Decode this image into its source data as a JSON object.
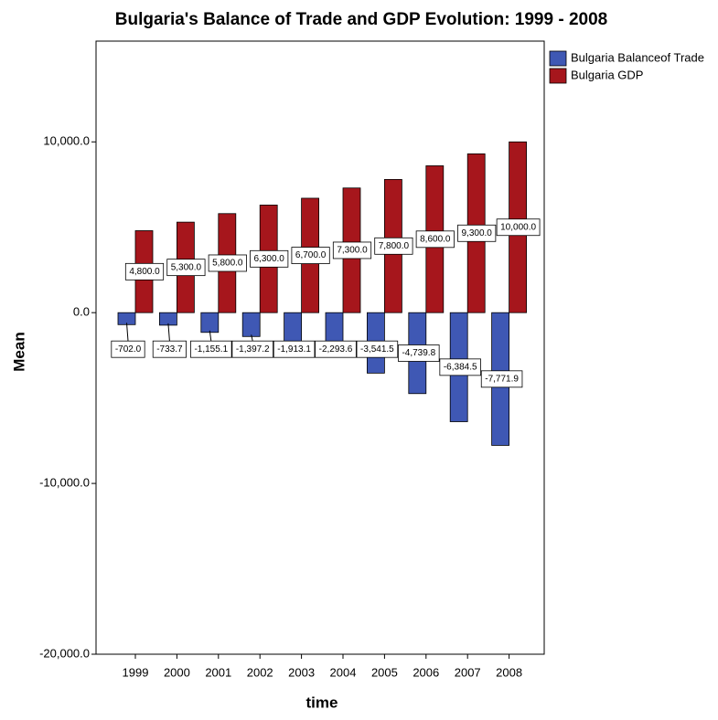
{
  "chart_data": {
    "type": "bar",
    "title": "Bulgaria's Balance of Trade and GDP Evolution: 1999 - 2008",
    "x_label": "time",
    "y_label": "Mean",
    "categories": [
      "1999",
      "2000",
      "2001",
      "2002",
      "2003",
      "2004",
      "2005",
      "2006",
      "2007",
      "2008"
    ],
    "series": [
      {
        "name": "Bulgaria Balanceof Trade",
        "color": "#3f58b4",
        "values": [
          -702.0,
          -733.7,
          -1155.1,
          -1397.2,
          -1913.1,
          -2293.6,
          -3541.5,
          -4739.8,
          -6384.5,
          -7771.9
        ],
        "value_labels": [
          "-702.0",
          "-733.7",
          "-1,155.1",
          "-1,397.2",
          "-1,913.1",
          "-2,293.6",
          "-3,541.5",
          "-4,739.8",
          "-6,384.5",
          "-7,771.9"
        ]
      },
      {
        "name": "Bulgaria GDP",
        "color": "#a6161c",
        "values": [
          4800,
          5300,
          5800,
          6300,
          6700,
          7300,
          7800,
          8600,
          9300,
          10000
        ],
        "value_labels": [
          "4,800.0",
          "5,300.0",
          "5,800.0",
          "6,300.0",
          "6,700.0",
          "7,300.0",
          "7,800.0",
          "8,600.0",
          "9,300.0",
          "10,000.0"
        ]
      }
    ],
    "ylim": [
      -20000,
      15900
    ],
    "yticks": [
      {
        "value": -20000,
        "label": "-20,000.0"
      },
      {
        "value": -10000,
        "label": "-10,000.0"
      },
      {
        "value": 0,
        "label": "0.0"
      },
      {
        "value": 10000,
        "label": "10,000.0"
      }
    ],
    "legend": "right"
  }
}
